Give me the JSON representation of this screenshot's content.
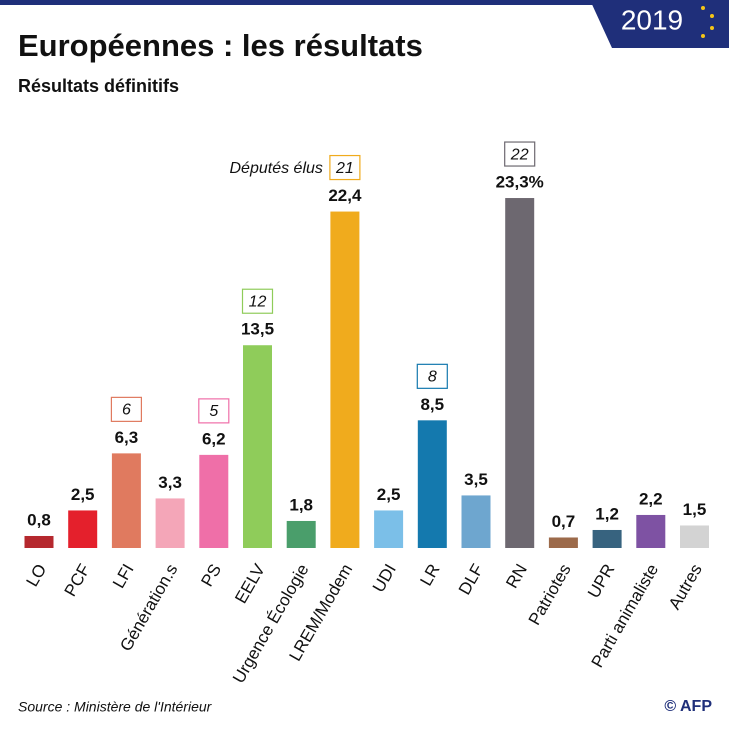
{
  "chart_data": {
    "type": "bar",
    "title": "Européennes : les résultats",
    "subtitle": "Résultats définitifs",
    "badge": "2019",
    "seats_label": "Députés élus",
    "source": "Source : Ministère de l'Intérieur",
    "credit": "© AFP",
    "categories": [
      "LO",
      "PCF",
      "LFI",
      "Génération.s",
      "PS",
      "EELV",
      "Urgence Écologie",
      "LREM/Modem",
      "UDI",
      "LR",
      "DLF",
      "RN",
      "Patriotes",
      "UPR",
      "Parti animaliste",
      "Autres"
    ],
    "values": [
      0.8,
      2.5,
      6.3,
      3.3,
      6.2,
      13.5,
      1.8,
      22.4,
      2.5,
      8.5,
      3.5,
      23.3,
      0.7,
      1.2,
      2.2,
      1.5
    ],
    "value_labels": [
      "0,8",
      "2,5",
      "6,3",
      "3,3",
      "6,2",
      "13,5",
      "1,8",
      "22,4",
      "2,5",
      "8,5",
      "3,5",
      "23,3%",
      "0,7",
      "1,2",
      "2,2",
      "1,5"
    ],
    "seats": [
      null,
      null,
      6,
      null,
      5,
      12,
      null,
      21,
      null,
      8,
      null,
      22,
      null,
      null,
      null,
      null
    ],
    "colors": [
      "#b5282e",
      "#e4202c",
      "#e07a5f",
      "#f4a6b8",
      "#ef6fa8",
      "#8fcc5a",
      "#4a9e6b",
      "#f0ab1d",
      "#7bbfe8",
      "#1479ae",
      "#6ea6cf",
      "#6d6870",
      "#9c6a4a",
      "#37637f",
      "#7e52a3",
      "#d3d3d3"
    ]
  }
}
